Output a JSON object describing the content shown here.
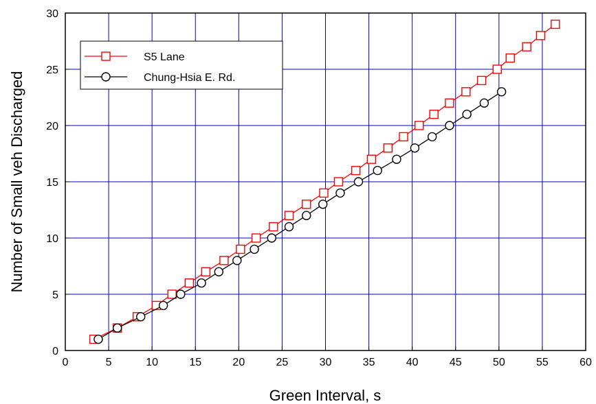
{
  "chart_data": {
    "type": "line",
    "xlabel": "Green Interval, s",
    "ylabel": "Number of Small veh Discharged",
    "xlim": [
      0,
      60
    ],
    "ylim": [
      0,
      30
    ],
    "x_ticks": [
      "0",
      "5",
      "10",
      "15",
      "20",
      "25",
      "30",
      "35",
      "40",
      "45",
      "50",
      "55",
      "60"
    ],
    "y_ticks": [
      "0",
      "5",
      "10",
      "15",
      "20",
      "25",
      "30"
    ],
    "grid": true,
    "grid_color": "#0000cc",
    "legend_position": "top-left",
    "series": [
      {
        "name": "S5 Lane",
        "color": "#ff0000",
        "marker": "square",
        "x": [
          3.3,
          6.0,
          8.3,
          10.5,
          12.3,
          14.3,
          16.2,
          18.3,
          20.2,
          22.0,
          24.0,
          25.8,
          27.8,
          29.8,
          31.5,
          33.5,
          35.3,
          37.2,
          39.0,
          40.8,
          42.5,
          44.3,
          46.2,
          48.0,
          49.8,
          51.3,
          53.2,
          54.8,
          56.5
        ],
        "y": [
          1,
          2,
          3,
          4,
          5,
          6,
          7,
          8,
          9,
          10,
          11,
          12,
          13,
          14,
          15,
          16,
          17,
          18,
          19,
          20,
          21,
          22,
          23,
          24,
          25,
          26,
          27,
          28,
          29
        ]
      },
      {
        "name": "Chung-Hsia E. Rd.",
        "color": "#000000",
        "marker": "circle",
        "x": [
          3.8,
          6.0,
          8.7,
          11.3,
          13.3,
          15.7,
          17.7,
          19.8,
          21.8,
          23.8,
          25.8,
          27.8,
          29.7,
          31.7,
          33.8,
          36.0,
          38.2,
          40.3,
          42.3,
          44.3,
          46.3,
          48.3,
          50.3
        ],
        "y": [
          1,
          2,
          3,
          4,
          5,
          6,
          7,
          8,
          9,
          10,
          11,
          12,
          13,
          14,
          15,
          16,
          17,
          18,
          19,
          20,
          21,
          22,
          23
        ]
      }
    ]
  }
}
